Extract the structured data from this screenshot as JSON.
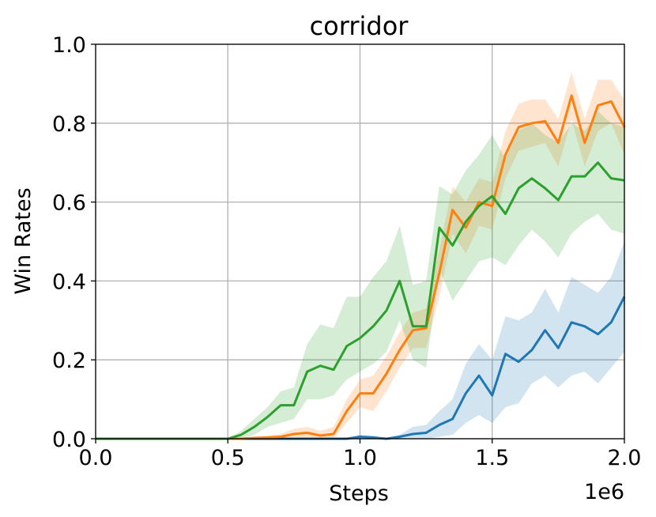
{
  "chart_data": {
    "type": "line",
    "title": "corridor",
    "xlabel": "Steps",
    "ylabel": "Win Rates",
    "x_offset_label": "1e6",
    "xlim": [
      0.0,
      2.0
    ],
    "ylim": [
      0.0,
      1.0
    ],
    "xticks": [
      "0.0",
      "0.5",
      "1.0",
      "1.5",
      "2.0"
    ],
    "yticks": [
      "0.0",
      "0.2",
      "0.4",
      "0.6",
      "0.8",
      "1.0"
    ],
    "grid": true,
    "x": [
      0.0,
      0.05,
      0.1,
      0.15,
      0.2,
      0.25,
      0.3,
      0.35,
      0.4,
      0.45,
      0.5,
      0.55,
      0.6,
      0.65,
      0.7,
      0.75,
      0.8,
      0.85,
      0.9,
      0.95,
      1.0,
      1.05,
      1.1,
      1.15,
      1.2,
      1.25,
      1.3,
      1.35,
      1.4,
      1.45,
      1.5,
      1.55,
      1.6,
      1.65,
      1.7,
      1.75,
      1.8,
      1.85,
      1.9,
      1.95,
      2.0
    ],
    "series": [
      {
        "color": "#1f77b4",
        "values": [
          0,
          0,
          0,
          0,
          0,
          0,
          0,
          0,
          0,
          0,
          0,
          0,
          0,
          0,
          0,
          0,
          0,
          0,
          0,
          0,
          0.005,
          0.003,
          0,
          0.005,
          0.012,
          0.015,
          0.035,
          0.05,
          0.115,
          0.16,
          0.11,
          0.215,
          0.195,
          0.225,
          0.275,
          0.23,
          0.295,
          0.285,
          0.265,
          0.295,
          0.36
        ],
        "lower": [
          0,
          0,
          0,
          0,
          0,
          0,
          0,
          0,
          0,
          0,
          0,
          0,
          0,
          0,
          0,
          0,
          0,
          0,
          0,
          0,
          0,
          0,
          0,
          0,
          0,
          0,
          0.005,
          0.01,
          0.04,
          0.06,
          0.04,
          0.08,
          0.09,
          0.14,
          0.16,
          0.13,
          0.16,
          0.17,
          0.14,
          0.18,
          0.22
        ],
        "upper": [
          0,
          0,
          0,
          0,
          0,
          0,
          0,
          0,
          0,
          0,
          0,
          0,
          0,
          0,
          0,
          0,
          0,
          0,
          0,
          0,
          0.01,
          0.008,
          0,
          0.01,
          0.03,
          0.035,
          0.07,
          0.1,
          0.19,
          0.24,
          0.2,
          0.31,
          0.3,
          0.32,
          0.38,
          0.32,
          0.41,
          0.39,
          0.37,
          0.41,
          0.5
        ]
      },
      {
        "color": "#ff7f0e",
        "values": [
          0,
          0,
          0,
          0,
          0,
          0,
          0,
          0,
          0,
          0,
          0,
          0,
          0.002,
          0.003,
          0.005,
          0.012,
          0.015,
          0.008,
          0.012,
          0.07,
          0.115,
          0.115,
          0.165,
          0.225,
          0.275,
          0.28,
          0.42,
          0.58,
          0.535,
          0.6,
          0.59,
          0.72,
          0.79,
          0.8,
          0.805,
          0.75,
          0.87,
          0.75,
          0.845,
          0.855,
          0.79
        ],
        "lower": [
          0,
          0,
          0,
          0,
          0,
          0,
          0,
          0,
          0,
          0,
          0,
          0,
          0,
          0,
          0,
          0,
          0,
          0,
          0,
          0.04,
          0.08,
          0.07,
          0.12,
          0.18,
          0.23,
          0.23,
          0.36,
          0.52,
          0.47,
          0.54,
          0.53,
          0.66,
          0.73,
          0.74,
          0.75,
          0.69,
          0.81,
          0.69,
          0.78,
          0.8,
          0.72
        ],
        "upper": [
          0,
          0,
          0,
          0,
          0,
          0,
          0,
          0,
          0,
          0,
          0,
          0,
          0.005,
          0.008,
          0.012,
          0.025,
          0.03,
          0.02,
          0.03,
          0.1,
          0.15,
          0.16,
          0.21,
          0.27,
          0.32,
          0.33,
          0.48,
          0.64,
          0.6,
          0.66,
          0.65,
          0.78,
          0.85,
          0.86,
          0.86,
          0.81,
          0.93,
          0.81,
          0.91,
          0.91,
          0.86
        ]
      },
      {
        "color": "#2ca02c",
        "values": [
          0,
          0,
          0,
          0,
          0,
          0,
          0,
          0,
          0,
          0,
          0,
          0.01,
          0.03,
          0.055,
          0.085,
          0.085,
          0.17,
          0.185,
          0.175,
          0.235,
          0.255,
          0.285,
          0.325,
          0.4,
          0.285,
          0.285,
          0.535,
          0.49,
          0.55,
          0.59,
          0.615,
          0.57,
          0.635,
          0.66,
          0.635,
          0.605,
          0.665,
          0.665,
          0.7,
          0.66,
          0.655
        ],
        "lower": [
          0,
          0,
          0,
          0,
          0,
          0,
          0,
          0,
          0,
          0,
          0,
          0,
          0.01,
          0.03,
          0.04,
          0.05,
          0.1,
          0.1,
          0.11,
          0.15,
          0.17,
          0.19,
          0.22,
          0.3,
          0.2,
          0.18,
          0.43,
          0.35,
          0.4,
          0.45,
          0.46,
          0.44,
          0.49,
          0.53,
          0.5,
          0.46,
          0.52,
          0.55,
          0.57,
          0.53,
          0.52
        ],
        "upper": [
          0,
          0,
          0,
          0,
          0,
          0,
          0,
          0,
          0,
          0,
          0,
          0.02,
          0.05,
          0.08,
          0.12,
          0.13,
          0.24,
          0.29,
          0.28,
          0.36,
          0.36,
          0.41,
          0.45,
          0.54,
          0.39,
          0.4,
          0.64,
          0.62,
          0.68,
          0.72,
          0.77,
          0.71,
          0.78,
          0.8,
          0.77,
          0.75,
          0.8,
          0.78,
          0.83,
          0.8,
          0.79
        ]
      }
    ]
  }
}
